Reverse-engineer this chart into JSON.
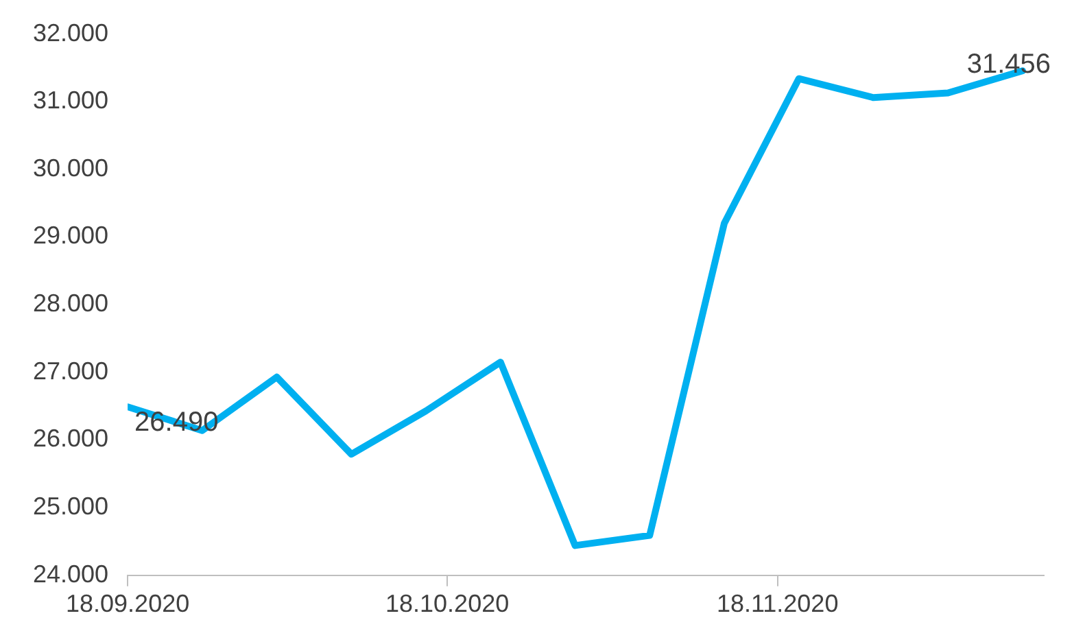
{
  "chart_data": {
    "type": "line",
    "x": [
      "2020-09-18",
      "2020-09-25",
      "2020-10-02",
      "2020-10-09",
      "2020-10-16",
      "2020-10-23",
      "2020-10-30",
      "2020-11-06",
      "2020-11-13",
      "2020-11-20",
      "2020-11-27",
      "2020-12-04",
      "2020-12-11"
    ],
    "series": [
      {
        "color": "#00b0f0",
        "values": [
          26490,
          26140,
          26930,
          25790,
          26430,
          27150,
          24440,
          24590,
          29200,
          31340,
          31060,
          31130,
          31456
        ],
        "value_labels": [
          "26.490",
          null,
          null,
          null,
          null,
          null,
          null,
          null,
          null,
          null,
          null,
          null,
          "31.456"
        ]
      }
    ],
    "xlim": [
      "2020-09-18",
      "2020-12-13"
    ],
    "xticks": [
      {
        "value": "2020-09-18",
        "label": "18.09.2020"
      },
      {
        "value": "2020-10-18",
        "label": "18.10.2020"
      },
      {
        "value": "2020-11-18",
        "label": "18.11.2020"
      }
    ],
    "ylim": [
      24000,
      32000
    ],
    "yticks": [
      {
        "value": 24000,
        "label": "24.000"
      },
      {
        "value": 25000,
        "label": "25.000"
      },
      {
        "value": 26000,
        "label": "26.000"
      },
      {
        "value": 27000,
        "label": "27.000"
      },
      {
        "value": 28000,
        "label": "28.000"
      },
      {
        "value": 29000,
        "label": "29.000"
      },
      {
        "value": 30000,
        "label": "30.000"
      },
      {
        "value": 31000,
        "label": "31.000"
      },
      {
        "value": 32000,
        "label": "32.000"
      }
    ],
    "grid": false,
    "legend": false,
    "marker": "none",
    "line_style": "solid"
  }
}
